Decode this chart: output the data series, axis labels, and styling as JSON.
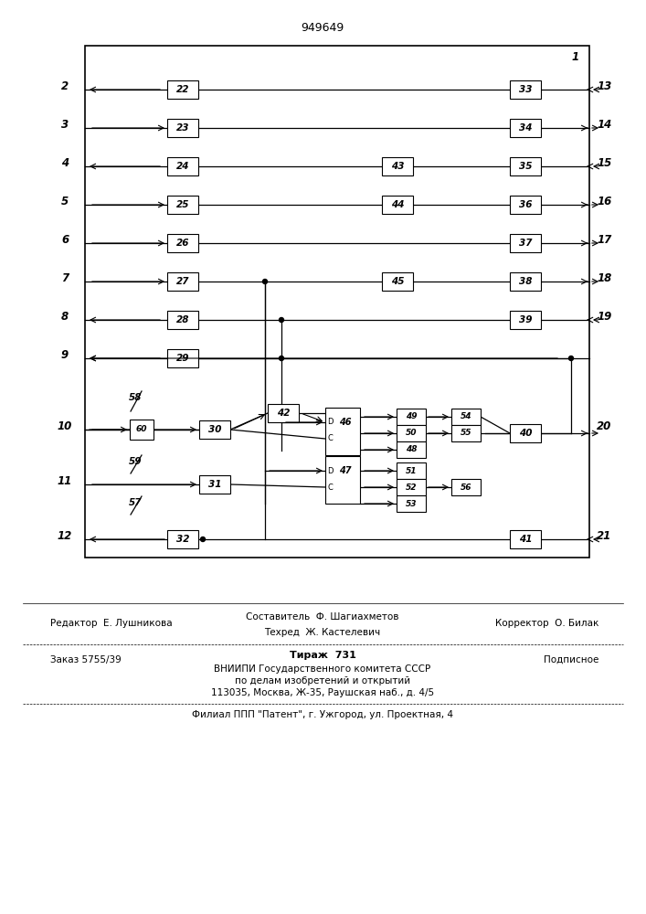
{
  "title": "949649",
  "bg_color": "#ffffff",
  "line_color": "#000000",
  "footer": {
    "line1_left": "Редактор  Е. Лушникова",
    "line1_center": "Составитель  Ф. Шагиахметов",
    "line1_center2": "Техред  Ж. Кастелевич",
    "line1_right": "Корректор  О. Билак",
    "line2_left": "Заказ 5755/39",
    "line2_center": "Тираж  731",
    "line2_right": "Подписное",
    "line3": "ВНИИПИ Государственного комитета СССР",
    "line4": "по делам изобретений и открытий",
    "line5": "113035, Москва, Ж-35, Раушская наб., д. 4/5",
    "line6": "Филиал ППП \"Патент\", г. Ужгород, ул. Проектная, 4"
  }
}
